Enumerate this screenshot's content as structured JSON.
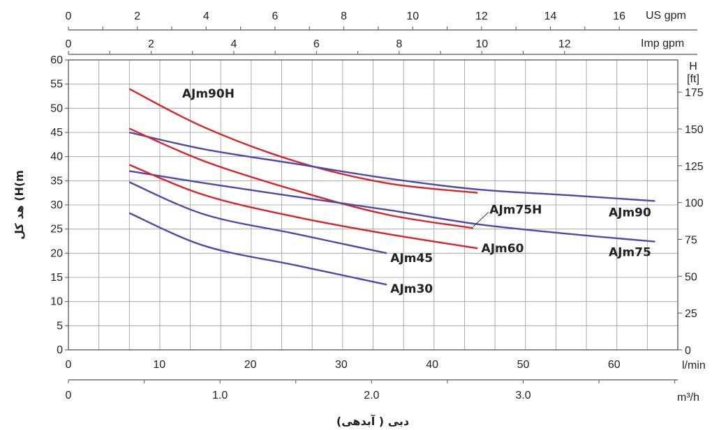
{
  "chart_data": {
    "type": "line",
    "ylabel": "هد کل (H(m",
    "xlabel": "دبی ( آبدهی)",
    "x_unit": "l/min",
    "x_range": [
      0,
      67
    ],
    "y_range": [
      0,
      60
    ],
    "x_ticks": [
      0,
      10,
      20,
      30,
      40,
      50,
      60
    ],
    "y_ticks": [
      0,
      5,
      10,
      15,
      20,
      25,
      30,
      35,
      40,
      45,
      50,
      55,
      60
    ],
    "grid": true,
    "top_axes": [
      {
        "unit": "US gpm",
        "ticks": [
          "0",
          "2",
          "4",
          "6",
          "8",
          "10",
          "12",
          "14",
          "16"
        ],
        "max": 17.7
      },
      {
        "unit": "Imp gpm",
        "ticks": [
          "0",
          "2",
          "4",
          "6",
          "8",
          "10",
          "12"
        ],
        "max": 14.74
      }
    ],
    "bottom_axis": {
      "unit": "m³/h",
      "ticks": [
        "0",
        "1.0",
        "2.0",
        "3.0"
      ],
      "max": 4.02
    },
    "right_axis": {
      "unit": "H",
      "unit2": "[ft]",
      "ticks": [
        "0",
        "25",
        "50",
        "75",
        "100",
        "125",
        "150",
        "175"
      ],
      "max": 196.85
    },
    "series": [
      {
        "name": "AJm90H",
        "color": "#d8232a",
        "x": [
          6.7,
          15,
          25,
          35,
          45
        ],
        "y": [
          54,
          46,
          39,
          34.5,
          32.5
        ]
      },
      {
        "name": "AJm90",
        "color": "#4a4aa8",
        "x": [
          6.7,
          15,
          25,
          35,
          45,
          55,
          64.5
        ],
        "y": [
          45,
          41.5,
          38.5,
          35.5,
          33.2,
          32,
          30.8
        ]
      },
      {
        "name": "AJm75H",
        "color": "#d8232a",
        "x": [
          6.7,
          15,
          25,
          35,
          44.5
        ],
        "y": [
          45.8,
          39,
          33,
          28,
          25.2
        ]
      },
      {
        "name": "AJm75",
        "color": "#4a4aa8",
        "x": [
          6.7,
          15,
          25,
          35,
          45,
          55,
          64.5
        ],
        "y": [
          37,
          34.5,
          31.7,
          29,
          26,
          24,
          22.4
        ]
      },
      {
        "name": "AJm60",
        "color": "#d8232a",
        "x": [
          6.7,
          15,
          25,
          35,
          45
        ],
        "y": [
          38.3,
          32,
          27.5,
          24,
          21
        ]
      },
      {
        "name": "AJm45",
        "color": "#4a4aa8",
        "x": [
          6.7,
          15,
          25,
          35
        ],
        "y": [
          34.7,
          28,
          24,
          20
        ]
      },
      {
        "name": "AJm30",
        "color": "#4a4aa8",
        "x": [
          6.7,
          15,
          25,
          35
        ],
        "y": [
          28.3,
          21.5,
          17.5,
          13.5
        ]
      }
    ],
    "series_labels": [
      {
        "name": "AJm90H",
        "x": 12.5,
        "y": 52.2
      },
      {
        "name": "AJm75H",
        "x": 46.3,
        "y": 28.2
      },
      {
        "name": "AJm90",
        "x": 59.4,
        "y": 27.6
      },
      {
        "name": "AJm60",
        "x": 45.4,
        "y": 20.2
      },
      {
        "name": "AJm75",
        "x": 59.4,
        "y": 19.4
      },
      {
        "name": "AJm45",
        "x": 35.4,
        "y": 18.2
      },
      {
        "name": "AJm30",
        "x": 35.4,
        "y": 11.8
      }
    ]
  }
}
